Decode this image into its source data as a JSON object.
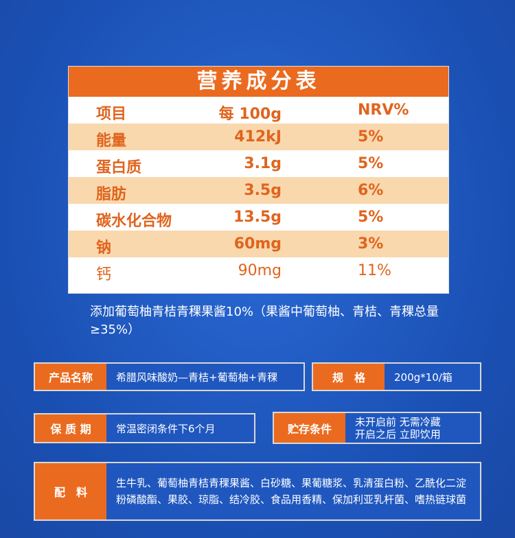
{
  "table": {
    "title": "营养成分表",
    "header": {
      "item": "项目",
      "per": "每 100g",
      "nrv": "NRV%"
    },
    "rows": [
      {
        "item": "能量",
        "per": "412kJ",
        "nrv": "5%"
      },
      {
        "item": "蛋白质",
        "per": "3.1g",
        "nrv": "5%"
      },
      {
        "item": "脂肪",
        "per": "3.5g",
        "nrv": "6%"
      },
      {
        "item": "碳水化合物",
        "per": "13.5g",
        "nrv": "5%"
      },
      {
        "item": "钠",
        "per": "60mg",
        "nrv": "3%"
      },
      {
        "item": "钙",
        "per": "90mg",
        "nrv": "11%"
      }
    ]
  },
  "note": "添加葡萄柚青桔青稞果酱10%（果酱中葡萄柚、青桔、青稞总量≥35%）",
  "info": {
    "product_label": "产品名称",
    "product_value": "希腊风味酸奶—青桔+葡萄柚+青稞",
    "spec_label": "规　格",
    "spec_value": "200g*10/箱",
    "shelf_label": "保 质 期",
    "shelf_value": "常温密闭条件下6个月",
    "storage_label": "贮存条件",
    "storage_line1": "未开启前 无需冷藏",
    "storage_line2": "开启之后 立即饮用",
    "ingredients_label": "配　料",
    "ingredients_value": "生牛乳、葡萄柚青桔青稞果酱、白砂糖、果葡糖浆、乳清蛋白粉、乙酰化二淀粉磷酸酯、果胶、琼脂、结冷胶、食品用香精、保加利亚乳杆菌、嗜热链球菌"
  },
  "colors": {
    "orange": "#ea6b1f",
    "shade": "#f9d8ae",
    "blue": "#1f5bc4"
  }
}
